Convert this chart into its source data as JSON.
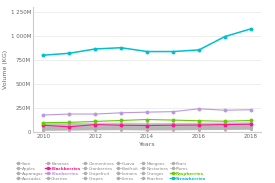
{
  "years": [
    2010,
    2011,
    2012,
    2013,
    2014,
    2015,
    2016,
    2017,
    2018
  ],
  "series": {
    "Sum": {
      "color": "#b0b0b0",
      "bold": false,
      "values": [
        85000000,
        87000000,
        90000000,
        92000000,
        88000000,
        89000000,
        91000000,
        93000000,
        95000000
      ]
    },
    "Apples": {
      "color": "#b0b0b0",
      "bold": false,
      "values": [
        80000000,
        82000000,
        84000000,
        86000000,
        83000000,
        84000000,
        86000000,
        88000000,
        90000000
      ]
    },
    "Asparagas": {
      "color": "#b0b0b0",
      "bold": false,
      "values": [
        75000000,
        77000000,
        79000000,
        81000000,
        78000000,
        79000000,
        81000000,
        83000000,
        85000000
      ]
    },
    "Avocados": {
      "color": "#b0b0b0",
      "bold": false,
      "values": [
        70000000,
        72000000,
        74000000,
        76000000,
        73000000,
        74000000,
        76000000,
        78000000,
        80000000
      ]
    },
    "Bananas": {
      "color": "#b0b0b0",
      "bold": false,
      "values": [
        65000000,
        67000000,
        69000000,
        71000000,
        68000000,
        69000000,
        71000000,
        73000000,
        75000000
      ]
    },
    "Blackberries": {
      "color": "#ff1493",
      "bold": true,
      "values": [
        68000000,
        52000000,
        75000000,
        68000000,
        65000000,
        68000000,
        70000000,
        75000000,
        78000000
      ]
    },
    "Blueberries": {
      "color": "#bb99dd",
      "bold": true,
      "values": [
        175000000,
        185000000,
        185000000,
        198000000,
        205000000,
        210000000,
        240000000,
        225000000,
        230000000
      ]
    },
    "Cherries": {
      "color": "#b0b0b0",
      "bold": false,
      "values": [
        60000000,
        62000000,
        64000000,
        66000000,
        63000000,
        64000000,
        66000000,
        68000000,
        70000000
      ]
    },
    "Clementines": {
      "color": "#b0b0b0",
      "bold": false,
      "values": [
        55000000,
        57000000,
        59000000,
        61000000,
        58000000,
        59000000,
        61000000,
        63000000,
        65000000
      ]
    },
    "Cranberries": {
      "color": "#b0b0b0",
      "bold": false,
      "values": [
        50000000,
        52000000,
        54000000,
        56000000,
        53000000,
        54000000,
        56000000,
        58000000,
        60000000
      ]
    },
    "Grapefruit": {
      "color": "#b0b0b0",
      "bold": false,
      "values": [
        47000000,
        49000000,
        51000000,
        53000000,
        50000000,
        51000000,
        53000000,
        55000000,
        57000000
      ]
    },
    "Grapes": {
      "color": "#b0b0b0",
      "bold": false,
      "values": [
        44000000,
        46000000,
        48000000,
        50000000,
        47000000,
        48000000,
        50000000,
        52000000,
        54000000
      ]
    },
    "Guava": {
      "color": "#b0b0b0",
      "bold": false,
      "values": [
        41000000,
        43000000,
        45000000,
        47000000,
        44000000,
        45000000,
        47000000,
        49000000,
        51000000
      ]
    },
    "Kiwifruit": {
      "color": "#b0b0b0",
      "bold": false,
      "values": [
        38000000,
        40000000,
        42000000,
        44000000,
        41000000,
        42000000,
        44000000,
        46000000,
        48000000
      ]
    },
    "Lemons": {
      "color": "#b0b0b0",
      "bold": false,
      "values": [
        35000000,
        37000000,
        39000000,
        41000000,
        38000000,
        39000000,
        41000000,
        43000000,
        45000000
      ]
    },
    "Limes": {
      "color": "#b0b0b0",
      "bold": false,
      "values": [
        32000000,
        34000000,
        36000000,
        38000000,
        35000000,
        36000000,
        38000000,
        40000000,
        42000000
      ]
    },
    "Mangoes": {
      "color": "#b0b0b0",
      "bold": false,
      "values": [
        29000000,
        31000000,
        33000000,
        35000000,
        32000000,
        33000000,
        35000000,
        37000000,
        39000000
      ]
    },
    "Nectarines": {
      "color": "#b0b0b0",
      "bold": false,
      "values": [
        26000000,
        28000000,
        30000000,
        32000000,
        29000000,
        30000000,
        32000000,
        34000000,
        36000000
      ]
    },
    "Oranges": {
      "color": "#b0b0b0",
      "bold": false,
      "values": [
        23000000,
        25000000,
        27000000,
        29000000,
        26000000,
        27000000,
        29000000,
        31000000,
        33000000
      ]
    },
    "Peaches": {
      "color": "#b0b0b0",
      "bold": false,
      "values": [
        20000000,
        22000000,
        24000000,
        26000000,
        23000000,
        24000000,
        26000000,
        28000000,
        30000000
      ]
    },
    "Pears": {
      "color": "#b0b0b0",
      "bold": false,
      "values": [
        17000000,
        19000000,
        21000000,
        23000000,
        20000000,
        21000000,
        23000000,
        25000000,
        27000000
      ]
    },
    "Plums": {
      "color": "#b0b0b0",
      "bold": false,
      "values": [
        14000000,
        16000000,
        18000000,
        20000000,
        17000000,
        18000000,
        20000000,
        22000000,
        24000000
      ]
    },
    "Raspberries": {
      "color": "#66cc00",
      "bold": true,
      "values": [
        95000000,
        98000000,
        108000000,
        118000000,
        128000000,
        122000000,
        115000000,
        110000000,
        118000000
      ]
    },
    "Strawberries": {
      "color": "#00c0d0",
      "bold": true,
      "values": [
        800000000,
        820000000,
        865000000,
        878000000,
        838000000,
        838000000,
        855000000,
        995000000,
        1075000000
      ]
    }
  },
  "xlabel": "Years",
  "ylabel": "Volume (KG)",
  "ylim": [
    0,
    1300000000
  ],
  "ytick_vals": [
    0,
    250000000,
    500000000,
    750000000,
    1000000000,
    1250000000
  ],
  "ytick_labels": [
    "0",
    "250M",
    "500M",
    "750M",
    "1 000M",
    "1 250M"
  ],
  "xticks": [
    2010,
    2012,
    2014,
    2016,
    2018
  ],
  "background_color": "#ffffff",
  "grid_color": "#e8e8e8",
  "highlight_names": [
    "Blackberries",
    "Blueberries",
    "Raspberries",
    "Strawberries"
  ],
  "legend_order": [
    "Sum",
    "Apples",
    "Asparagas",
    "Avocados",
    "Bananas",
    "Blackberries",
    "Blueberries",
    "Cherries",
    "Clementines",
    "Cranberries",
    "Grapefruit",
    "Grapes",
    "Guava",
    "Kiwifruit",
    "Lemons",
    "Limes",
    "Mangoes",
    "Nectarines",
    "Oranges",
    "Peaches",
    "Pears",
    "Plums",
    "Raspberries",
    "Strawberries"
  ]
}
